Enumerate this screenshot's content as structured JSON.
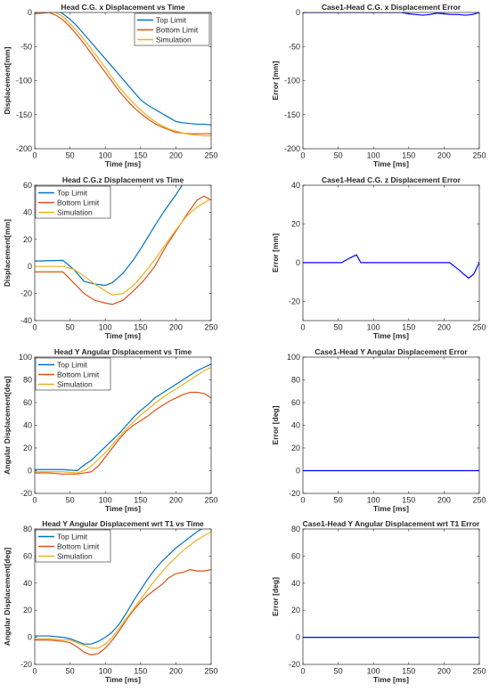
{
  "chart_data": [
    {
      "type": "line",
      "title": "Head C.G. x Displacement vs Time",
      "xlabel": "Time [ms]",
      "ylabel": "Displacement[mm]",
      "xlim": [
        0,
        250
      ],
      "ylim": [
        -200,
        0
      ],
      "xticks": [
        0,
        50,
        100,
        150,
        200,
        250
      ],
      "yticks": [
        -200,
        -150,
        -100,
        -50,
        0
      ],
      "grid": false,
      "legend": "top-right",
      "series": [
        {
          "name": "Top Limit",
          "color": "#0072BD",
          "x": [
            0,
            10,
            20,
            30,
            40,
            50,
            60,
            70,
            80,
            90,
            100,
            110,
            120,
            130,
            140,
            150,
            160,
            170,
            180,
            190,
            200,
            210,
            220,
            230,
            240,
            250
          ],
          "y": [
            6,
            7,
            7,
            4,
            -2,
            -10,
            -20,
            -32,
            -44,
            -56,
            -68,
            -80,
            -92,
            -104,
            -116,
            -128,
            -136,
            -142,
            -148,
            -154,
            -160,
            -162,
            -163,
            -164,
            -164,
            -165
          ]
        },
        {
          "name": "Bottom Limit",
          "color": "#D95319",
          "x": [
            0,
            10,
            20,
            30,
            40,
            50,
            60,
            70,
            80,
            90,
            100,
            110,
            120,
            130,
            140,
            150,
            160,
            170,
            180,
            190,
            200,
            210,
            220,
            230,
            240,
            250
          ],
          "y": [
            -2,
            -1,
            0,
            -4,
            -11,
            -21,
            -33,
            -46,
            -60,
            -74,
            -88,
            -102,
            -116,
            -128,
            -139,
            -148,
            -156,
            -163,
            -168,
            -172,
            -176,
            -177,
            -178,
            -178,
            -178,
            -178
          ]
        },
        {
          "name": "Simulation",
          "color": "#EDB120",
          "x": [
            0,
            10,
            20,
            30,
            40,
            50,
            60,
            70,
            80,
            90,
            100,
            110,
            120,
            130,
            140,
            150,
            160,
            170,
            180,
            190,
            200,
            210,
            220,
            230,
            240,
            250
          ],
          "y": [
            2,
            3,
            3,
            0,
            -6,
            -16,
            -27,
            -40,
            -53,
            -67,
            -81,
            -96,
            -110,
            -122,
            -133,
            -143,
            -152,
            -160,
            -166,
            -171,
            -174,
            -177,
            -179,
            -180,
            -181,
            -181
          ]
        }
      ]
    },
    {
      "type": "line",
      "title": "Case1-Head C.G. x Displacement Error",
      "xlabel": "Time [ms]",
      "ylabel": "Error [mm]",
      "xlim": [
        0,
        250
      ],
      "ylim": [
        -200,
        0
      ],
      "xticks": [
        0,
        50,
        100,
        150,
        200,
        250
      ],
      "yticks": [
        -200,
        -150,
        -100,
        -50,
        0
      ],
      "grid": false,
      "series": [
        {
          "color": "#0000FF",
          "x": [
            0,
            140,
            150,
            160,
            170,
            180,
            190,
            200,
            210,
            220,
            230,
            240,
            250
          ],
          "y": [
            0,
            0,
            -2,
            -3,
            -4,
            -3,
            -1,
            -2,
            -3,
            -3,
            -4,
            -3,
            0
          ]
        }
      ]
    },
    {
      "type": "line",
      "title": "Head C.G.z Displacement vs Time",
      "xlabel": "Time [ms]",
      "ylabel": "Displacement[mm]",
      "xlim": [
        0,
        250
      ],
      "ylim": [
        -40,
        60
      ],
      "xticks": [
        0,
        50,
        100,
        150,
        200,
        250
      ],
      "yticks": [
        -40,
        -20,
        0,
        20,
        40,
        60
      ],
      "grid": false,
      "legend": "top-left",
      "series": [
        {
          "name": "Top Limit",
          "color": "#0072BD",
          "x": [
            0,
            40,
            55,
            70,
            85,
            100,
            110,
            125,
            140,
            155,
            170,
            185,
            200,
            210,
            225,
            240,
            250
          ],
          "y": [
            4,
            4.5,
            -2,
            -11,
            -13,
            -14,
            -12,
            -5,
            5,
            17,
            30,
            42,
            53,
            61,
            62,
            62,
            68
          ]
        },
        {
          "name": "Bottom Limit",
          "color": "#D95319",
          "x": [
            0,
            40,
            55,
            70,
            85,
            100,
            110,
            125,
            140,
            155,
            170,
            185,
            200,
            215,
            230,
            240,
            250
          ],
          "y": [
            -4,
            -4,
            -12,
            -20,
            -25,
            -27,
            -28,
            -25,
            -18,
            -10,
            0,
            14,
            26,
            38,
            49,
            52,
            49
          ]
        },
        {
          "name": "Simulation",
          "color": "#EDB120",
          "x": [
            0,
            20,
            40,
            55,
            70,
            85,
            100,
            110,
            125,
            140,
            155,
            170,
            185,
            200,
            215,
            230,
            250
          ],
          "y": [
            0,
            0,
            0,
            -2,
            -7,
            -13,
            -18,
            -21,
            -20,
            -14,
            -5,
            5,
            16,
            27,
            37,
            44,
            50
          ]
        }
      ]
    },
    {
      "type": "line",
      "title": "Case1-Head C.G. z Displacement Error",
      "xlabel": "Time [ms]",
      "ylabel": "Error [mm]",
      "xlim": [
        0,
        250
      ],
      "ylim": [
        -30,
        40
      ],
      "xticks": [
        0,
        50,
        100,
        150,
        200,
        250
      ],
      "yticks": [
        -20,
        0,
        20,
        40
      ],
      "grid": false,
      "series": [
        {
          "color": "#0000FF",
          "x": [
            0,
            55,
            62,
            70,
            76,
            82,
            200,
            208,
            215,
            222,
            228,
            235,
            242,
            250
          ],
          "y": [
            0,
            0,
            1.5,
            3,
            4,
            0,
            0,
            0,
            -2,
            -4,
            -6,
            -8,
            -6,
            0
          ]
        }
      ]
    },
    {
      "type": "line",
      "title": "Head Y Angular Displacement vs Time",
      "xlabel": "Time [ms]",
      "ylabel": "Angular Displacement[deg]",
      "xlim": [
        0,
        250
      ],
      "ylim": [
        -20,
        100
      ],
      "xticks": [
        0,
        50,
        100,
        150,
        200,
        250
      ],
      "yticks": [
        -20,
        0,
        20,
        40,
        60,
        80,
        100
      ],
      "grid": false,
      "legend": "top-left",
      "series": [
        {
          "name": "Top Limit",
          "color": "#0072BD",
          "x": [
            0,
            20,
            40,
            60,
            70,
            80,
            90,
            100,
            110,
            120,
            130,
            140,
            150,
            160,
            170,
            180,
            190,
            200,
            210,
            220,
            230,
            240,
            250
          ],
          "y": [
            1,
            1,
            1,
            0,
            5,
            9,
            15,
            21,
            27,
            33,
            40,
            47,
            53,
            58,
            64,
            68,
            72,
            76,
            80,
            84,
            88,
            91,
            94
          ]
        },
        {
          "name": "Bottom Limit",
          "color": "#D95319",
          "x": [
            0,
            20,
            40,
            60,
            70,
            80,
            90,
            100,
            110,
            120,
            130,
            140,
            150,
            160,
            170,
            180,
            190,
            200,
            210,
            220,
            230,
            240,
            250
          ],
          "y": [
            -2,
            -2,
            -3,
            -3,
            -2,
            -1,
            4,
            12,
            20,
            28,
            35,
            40,
            44,
            48,
            53,
            57,
            61,
            64,
            67,
            69,
            69,
            68,
            64
          ]
        },
        {
          "name": "Simulation",
          "color": "#EDB120",
          "x": [
            0,
            20,
            40,
            60,
            70,
            80,
            90,
            100,
            110,
            120,
            130,
            140,
            150,
            160,
            170,
            180,
            190,
            200,
            210,
            220,
            230,
            240,
            250
          ],
          "y": [
            -1,
            -1,
            -1,
            -2,
            0,
            4,
            10,
            16,
            23,
            30,
            37,
            43,
            49,
            54,
            59,
            64,
            68,
            72,
            76,
            80,
            84,
            88,
            91
          ]
        }
      ]
    },
    {
      "type": "line",
      "title": "Case1-Head Y Angular Displacement Error",
      "xlabel": "Time [ms]",
      "ylabel": "Error [deg]",
      "xlim": [
        0,
        250
      ],
      "ylim": [
        -20,
        100
      ],
      "xticks": [
        0,
        50,
        100,
        150,
        200,
        250
      ],
      "yticks": [
        -20,
        0,
        20,
        40,
        60,
        80,
        100
      ],
      "grid": false,
      "series": [
        {
          "color": "#0000FF",
          "x": [
            0,
            250
          ],
          "y": [
            0,
            0
          ]
        }
      ]
    },
    {
      "type": "line",
      "title": "Head Y Angular Displacement wrt T1 vs Time",
      "xlabel": "Time [ms]",
      "ylabel": "Angular Displacement[deg]",
      "xlim": [
        0,
        250
      ],
      "ylim": [
        -20,
        80
      ],
      "xticks": [
        0,
        50,
        100,
        150,
        200,
        250
      ],
      "yticks": [
        -20,
        0,
        20,
        40,
        60,
        80
      ],
      "grid": false,
      "legend": "top-left",
      "series": [
        {
          "name": "Top Limit",
          "color": "#0072BD",
          "x": [
            0,
            20,
            40,
            50,
            60,
            70,
            80,
            90,
            100,
            110,
            120,
            130,
            140,
            150,
            160,
            170,
            180,
            190,
            200,
            210,
            220,
            230,
            240,
            250
          ],
          "y": [
            1,
            1,
            0,
            -1,
            -3,
            -5,
            -5,
            -3,
            0,
            4,
            10,
            18,
            27,
            35,
            43,
            50,
            56,
            61,
            66,
            70,
            74,
            78,
            81,
            82
          ]
        },
        {
          "name": "Bottom Limit",
          "color": "#D95319",
          "x": [
            0,
            20,
            40,
            50,
            60,
            70,
            80,
            90,
            100,
            110,
            120,
            130,
            140,
            150,
            160,
            170,
            180,
            190,
            200,
            210,
            220,
            230,
            240,
            250
          ],
          "y": [
            -2,
            -2,
            -3,
            -4,
            -7,
            -11,
            -13,
            -12,
            -8,
            -2,
            5,
            13,
            20,
            26,
            31,
            35,
            39,
            44,
            47,
            48,
            50,
            49,
            49,
            50
          ]
        },
        {
          "name": "Simulation",
          "color": "#EDB120",
          "x": [
            0,
            20,
            40,
            50,
            60,
            70,
            80,
            90,
            100,
            110,
            120,
            130,
            140,
            150,
            160,
            170,
            180,
            190,
            200,
            210,
            220,
            230,
            240,
            250
          ],
          "y": [
            -1,
            -1,
            -2,
            -2,
            -4,
            -6,
            -8,
            -8,
            -5,
            0,
            7,
            14,
            21,
            28,
            35,
            42,
            48,
            54,
            59,
            64,
            68,
            72,
            75,
            78
          ]
        }
      ]
    },
    {
      "type": "line",
      "title": "Case1-Head Y Angular Displacement wrt T1 Error",
      "xlabel": "Time [ms]",
      "ylabel": "Error [deg]",
      "xlim": [
        0,
        250
      ],
      "ylim": [
        -20,
        80
      ],
      "xticks": [
        0,
        50,
        100,
        150,
        200,
        250
      ],
      "yticks": [
        -20,
        0,
        20,
        40,
        60,
        80
      ],
      "grid": false,
      "series": [
        {
          "color": "#0000FF",
          "x": [
            0,
            250
          ],
          "y": [
            0,
            0
          ]
        }
      ]
    }
  ]
}
